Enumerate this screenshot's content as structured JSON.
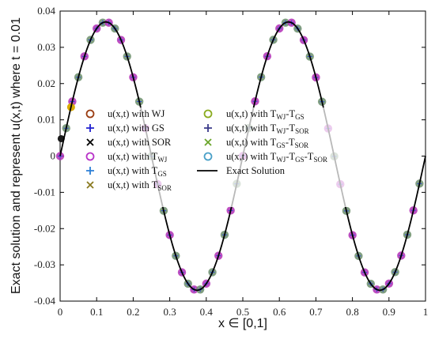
{
  "chart_data": {
    "type": "line",
    "xlabel": "x ∈ [0,1]",
    "ylabel": "Exact solution and represent u(x,t) where t = 0.01",
    "xlim": [
      0,
      1
    ],
    "ylim": [
      -0.04,
      0.04
    ],
    "xticks": [
      "0",
      "0.1",
      "0.2",
      "0.3",
      "0.4",
      "0.5",
      "0.6",
      "0.7",
      "0.8",
      "0.9",
      "1"
    ],
    "yticks": [
      "0.04",
      "0.03",
      "0.02",
      "0.01",
      "0",
      "-0.01",
      "-0.02",
      "-0.03",
      "-0.04"
    ],
    "grid": false,
    "legend_position": "center",
    "function_samples": {
      "x": [
        0,
        0.125,
        0.25,
        0.375,
        0.5,
        0.625,
        0.75,
        0.875,
        1
      ],
      "y": [
        0,
        0.037,
        0,
        -0.037,
        0,
        0.037,
        0,
        -0.037,
        0
      ]
    },
    "marker_step": 0.01667,
    "series": [
      {
        "name": "u(x,t) with WJ",
        "marker": "circle",
        "color": "#9a3d12"
      },
      {
        "name": "u(x,t) with GS",
        "marker": "plus",
        "color": "#1f1fd0"
      },
      {
        "name": "u(x,t) with SOR",
        "marker": "x",
        "color": "#000000"
      },
      {
        "name": "u(x,t) with T_WJ",
        "marker": "circle",
        "color": "#b833c8"
      },
      {
        "name": "u(x,t) with T_GS",
        "marker": "plus",
        "color": "#2b7fd6"
      },
      {
        "name": "u(x,t) with T_SOR",
        "marker": "x",
        "color": "#8a7a20"
      },
      {
        "name": "u(x,t) with T_WJ-T_GS",
        "marker": "circle",
        "color": "#8aab1f"
      },
      {
        "name": "u(x,t) with T_WJ-T_SOR",
        "marker": "plus",
        "color": "#3a3a8a"
      },
      {
        "name": "u(x,t) with T_GS-T_SOR",
        "marker": "x",
        "color": "#6aa52a"
      },
      {
        "name": "u(x,t) with T_WJ-T_GS-T_SOR",
        "marker": "circle",
        "color": "#4aa0c8"
      },
      {
        "name": "Exact Solution",
        "marker": "line",
        "color": "#000000"
      }
    ]
  },
  "legend": {
    "col1": [
      {
        "main": "u(x,t) with WJ",
        "sub": []
      },
      {
        "main": "u(x,t) with GS",
        "sub": []
      },
      {
        "main": "u(x,t) with SOR",
        "sub": []
      },
      {
        "main": "u(x,t) with T",
        "sub": [
          "WJ"
        ]
      },
      {
        "main": "u(x,t) with T",
        "sub": [
          "GS"
        ]
      },
      {
        "main": "u(x,t) with T",
        "sub": [
          "SOR"
        ]
      }
    ],
    "col2": [
      {
        "main": "u(x,t) with T",
        "sub": [
          "WJ",
          "-T",
          "GS"
        ]
      },
      {
        "main": "u(x,t) with T",
        "sub": [
          "WJ",
          "-T",
          "SOR"
        ]
      },
      {
        "main": "u(x,t) with T",
        "sub": [
          "GS",
          "-T",
          "SOR"
        ]
      },
      {
        "main": "u(x,t) with T",
        "sub": [
          "WJ",
          "-T",
          "GS",
          "-T",
          "SOR"
        ]
      },
      {
        "main": "Exact Solution",
        "sub": []
      }
    ]
  }
}
